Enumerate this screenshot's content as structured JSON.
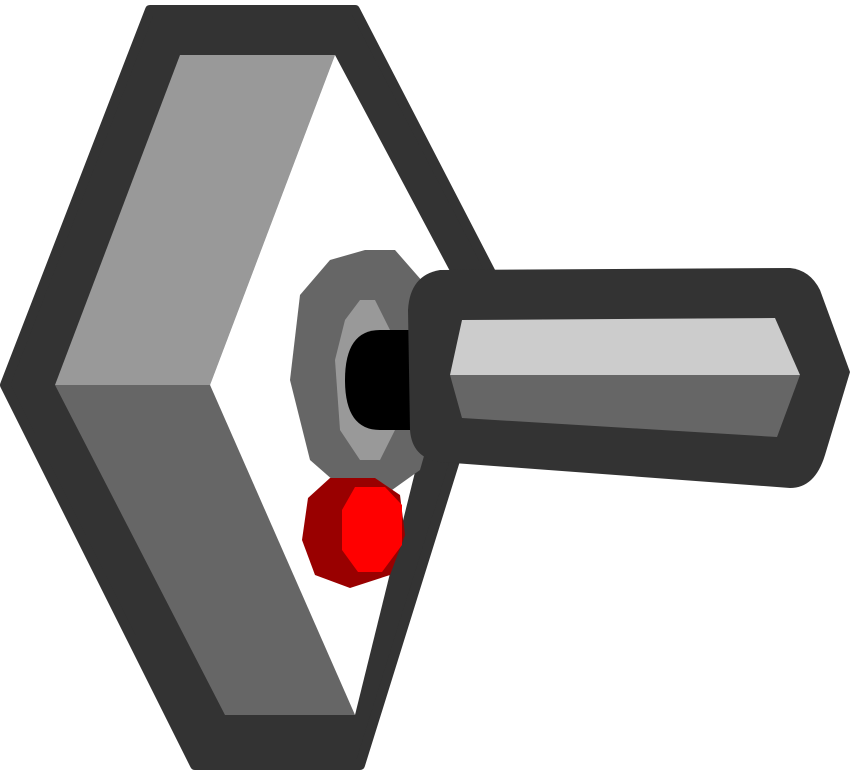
{
  "icon": {
    "name": "toggle-switch-lever",
    "colors": {
      "background": "#ffffff",
      "outline": "#333333",
      "plate_face": "#ffffff",
      "plate_bevel_light": "#999999",
      "plate_bevel_dark": "#666666",
      "nut_outer": "#666666",
      "nut_inner": "#999999",
      "pivot": "#000000",
      "lever_top": "#cccccc",
      "lever_bottom": "#666666",
      "indicator_dark": "#990000",
      "indicator_bright": "#ff0000"
    }
  }
}
